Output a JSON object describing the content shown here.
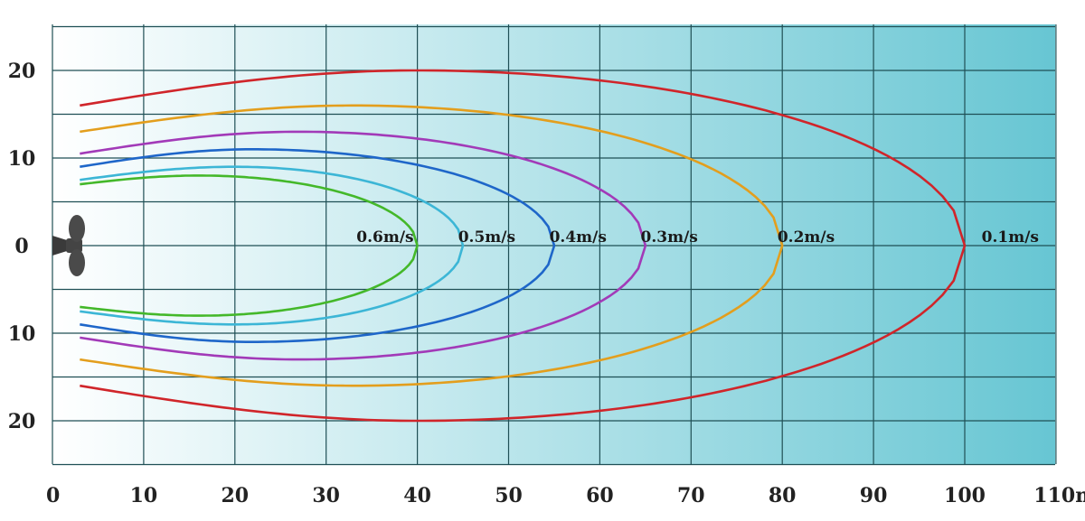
{
  "chart_data": {
    "type": "line",
    "title": "",
    "xlabel": "",
    "ylabel": "",
    "x_unit": "m",
    "xlim": [
      0,
      110
    ],
    "ylim": [
      -25,
      25
    ],
    "x_ticks": [
      "0",
      "10",
      "20",
      "30",
      "40",
      "50",
      "60",
      "70",
      "80",
      "90",
      "100",
      "110m"
    ],
    "y_ticks": [
      {
        "value": 20,
        "label": "20"
      },
      {
        "value": 10,
        "label": "10"
      },
      {
        "value": 0,
        "label": "0"
      },
      {
        "value": -10,
        "label": "10"
      },
      {
        "value": -20,
        "label": "20"
      }
    ],
    "grid": true,
    "background": {
      "from": "#ffffff",
      "to": "#67c6d3"
    },
    "series": [
      {
        "label": "0.6m/s",
        "color": "#44b82a",
        "tip": 40,
        "start_half_width": 7,
        "max_half_width": 8,
        "max_at_x": 16
      },
      {
        "label": "0.5m/s",
        "color": "#3cb6d6",
        "tip": 45,
        "start_half_width": 7.5,
        "max_half_width": 9,
        "max_at_x": 20
      },
      {
        "label": "0.4m/s",
        "color": "#1e66c9",
        "tip": 55,
        "start_half_width": 9,
        "max_half_width": 11,
        "max_at_x": 22
      },
      {
        "label": "0.3m/s",
        "color": "#a23ab8",
        "tip": 65,
        "start_half_width": 10.5,
        "max_half_width": 13,
        "max_at_x": 27
      },
      {
        "label": "0.2m/s",
        "color": "#e39e1d",
        "tip": 80,
        "start_half_width": 13,
        "max_half_width": 16,
        "max_at_x": 33
      },
      {
        "label": "0.1m/s",
        "color": "#d0252a",
        "tip": 100,
        "start_half_width": 16,
        "max_half_width": 20,
        "max_at_x": 40
      }
    ]
  },
  "propeller_icon": "propeller-icon"
}
